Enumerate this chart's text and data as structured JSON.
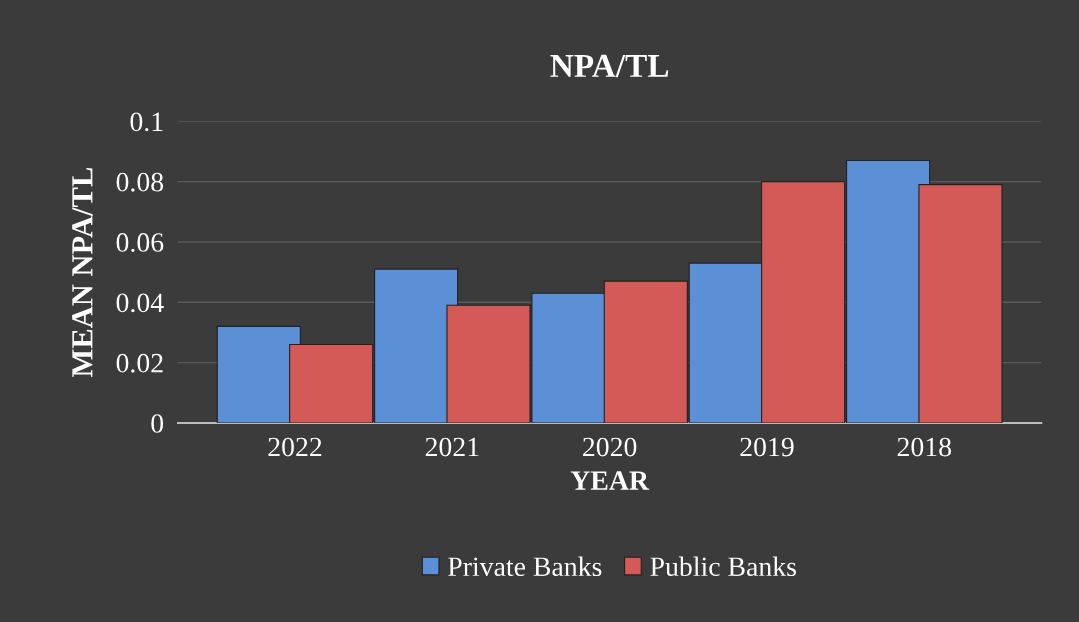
{
  "chart_data": {
    "type": "bar",
    "title": "NPA/TL",
    "xlabel": "YEAR",
    "ylabel": "MEAN NPA/TL",
    "categories": [
      "2022",
      "2021",
      "2020",
      "2019",
      "2018"
    ],
    "series": [
      {
        "name": "Private Banks",
        "color": "#5b8fd6",
        "values": [
          0.032,
          0.051,
          0.043,
          0.053,
          0.087
        ]
      },
      {
        "name": "Public Banks",
        "color": "#d45a58",
        "values": [
          0.026,
          0.039,
          0.047,
          0.08,
          0.079
        ]
      }
    ],
    "ylim": [
      0,
      0.1
    ],
    "yticks": [
      0,
      0.02,
      0.04,
      0.06,
      0.08,
      0.1
    ],
    "grid": "y",
    "legend": "bottom"
  }
}
